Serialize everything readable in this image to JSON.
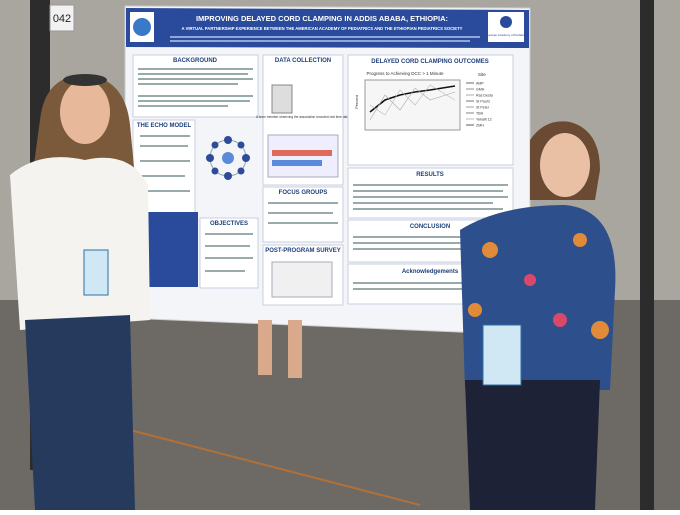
{
  "booth_number": "042",
  "poster": {
    "title": "IMPROVING DELAYED CORD CLAMPING IN ADDIS ABABA, ETHIOPIA:",
    "subtitle": "A VIRTUAL PARTNERSHIP EXPERIENCE BETWEEN THE AMERICAN ACADEMY OF PEDIATRICS AND THE ETHIOPIAN PEDIATRICS SOCIETY",
    "logo_text": "American Academy of Pediatrics",
    "sections": {
      "background": "BACKGROUND",
      "data_collection": "DATA COLLECTION",
      "outcomes": "DELAYED CORD CLAMPING OUTCOMES",
      "echo_model": "THE ECHO MODEL",
      "objectives": "OBJECTIVES",
      "focus_groups": "FOCUS GROUPS",
      "survey": "POST-PROGRAM SURVEY",
      "results": "RESULTS",
      "conclusion": "CONCLUSION",
      "acknowledgements": "Acknowledgements"
    },
    "chart": {
      "title": "Progress to Achieving DCC > 1 Minute",
      "y_label": "Percent",
      "legend_title": "Site",
      "legend": [
        "AMP",
        "GMH",
        "Ras Desta",
        "St Paul's",
        "St Peter",
        "TBH",
        "Yekatit 12",
        "ZMH"
      ]
    },
    "data_note": "A team member observing the association recorded real time data in the LAUNCHR app"
  }
}
